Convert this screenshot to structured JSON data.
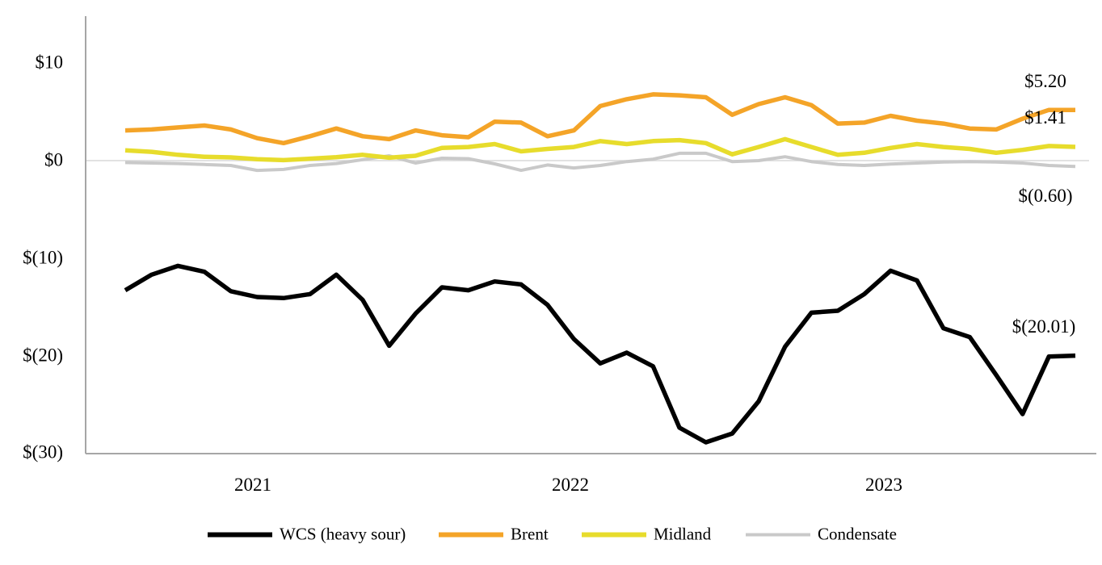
{
  "chart_data": {
    "type": "line",
    "title": "",
    "subtitle": "",
    "x": [
      "2020-08",
      "2020-09",
      "2020-10",
      "2020-11",
      "2020-12",
      "2021-01",
      "2021-02",
      "2021-03",
      "2021-04",
      "2021-05",
      "2021-06",
      "2021-07",
      "2021-08",
      "2021-09",
      "2021-10",
      "2021-11",
      "2021-12",
      "2022-01",
      "2022-02",
      "2022-03",
      "2022-04",
      "2022-05",
      "2022-06",
      "2022-07",
      "2022-08",
      "2022-09",
      "2022-10",
      "2022-11",
      "2022-12",
      "2023-01",
      "2023-02",
      "2023-03",
      "2023-04",
      "2023-05",
      "2023-06",
      "2023-07",
      "2023-08"
    ],
    "x_year_labels": [
      "2021",
      "2022",
      "2023"
    ],
    "y_axis": {
      "ticks": [
        {
          "label": "$10",
          "value": 10
        },
        {
          "label": "$0",
          "value": 0
        },
        {
          "label": "$(10)",
          "value": -10
        },
        {
          "label": "$(20)",
          "value": -20
        },
        {
          "label": "$(30)",
          "value": -30
        }
      ],
      "range": [
        -30,
        14.8
      ],
      "zero_line": true
    },
    "grid": "zero-line-only",
    "series": [
      {
        "name": "Condensate",
        "color": "#C9C9C9",
        "stroke_width": 4,
        "values": [
          -0.2,
          -0.25,
          -0.3,
          -0.4,
          -0.5,
          -1.0,
          -0.9,
          -0.5,
          -0.3,
          0.1,
          0.5,
          -0.25,
          0.25,
          0.2,
          -0.33,
          -1.0,
          -0.45,
          -0.75,
          -0.5,
          -0.1,
          0.15,
          0.75,
          0.75,
          -0.1,
          0.0,
          0.4,
          -0.1,
          -0.4,
          -0.5,
          -0.35,
          -0.25,
          -0.15,
          -0.1,
          -0.15,
          -0.25,
          -0.5,
          -0.6
        ]
      },
      {
        "name": "Midland",
        "color": "#E7DC2C",
        "stroke_width": 5.5,
        "values": [
          1.05,
          0.9,
          0.6,
          0.4,
          0.33,
          0.15,
          0.05,
          0.2,
          0.35,
          0.6,
          0.3,
          0.5,
          1.3,
          1.4,
          1.7,
          0.95,
          1.2,
          1.4,
          2.0,
          1.7,
          2.0,
          2.1,
          1.8,
          0.65,
          1.4,
          2.2,
          1.4,
          0.6,
          0.8,
          1.3,
          1.7,
          1.4,
          1.2,
          0.8,
          1.1,
          1.5,
          1.41
        ]
      },
      {
        "name": "Brent",
        "color": "#F4A428",
        "stroke_width": 5.5,
        "values": [
          3.1,
          3.2,
          3.4,
          3.6,
          3.2,
          2.3,
          1.8,
          2.5,
          3.3,
          2.5,
          2.2,
          3.1,
          2.6,
          2.4,
          4.0,
          3.9,
          2.5,
          3.1,
          5.6,
          6.3,
          6.8,
          6.7,
          6.5,
          4.7,
          5.8,
          6.5,
          5.7,
          3.8,
          3.9,
          4.6,
          4.1,
          3.8,
          3.3,
          3.2,
          4.3,
          5.2,
          5.2
        ]
      },
      {
        "name": "WCS (heavy sour)",
        "color": "#000000",
        "stroke_width": 5.5,
        "values": [
          -13.3,
          -11.7,
          -10.8,
          -11.4,
          -13.4,
          -14.0,
          -14.1,
          -13.7,
          -11.7,
          -14.3,
          -19.0,
          -15.7,
          -13.0,
          -13.3,
          -12.4,
          -12.7,
          -14.8,
          -18.3,
          -20.8,
          -19.7,
          -21.1,
          -27.4,
          -28.9,
          -28.0,
          -24.7,
          -19.1,
          -15.6,
          -15.4,
          -13.7,
          -11.3,
          -12.3,
          -17.2,
          -18.1,
          -22.0,
          -26.0,
          -20.1,
          -20.01
        ]
      }
    ],
    "end_labels": [
      {
        "text": "$5.20",
        "series": "Brent"
      },
      {
        "text": "$1.41",
        "series": "Midland"
      },
      {
        "text": "$(0.60)",
        "series": "Condensate"
      },
      {
        "text": "$(20.01)",
        "series": "WCS (heavy sour)"
      }
    ],
    "legend": {
      "position": "bottom",
      "items": [
        "WCS (heavy sour)",
        "Brent",
        "Midland",
        "Condensate"
      ]
    }
  },
  "colors": {
    "axis": "#A6A6A6",
    "zero_line": "#D9D9D9",
    "text": "#000000",
    "background": "#FFFFFF"
  }
}
